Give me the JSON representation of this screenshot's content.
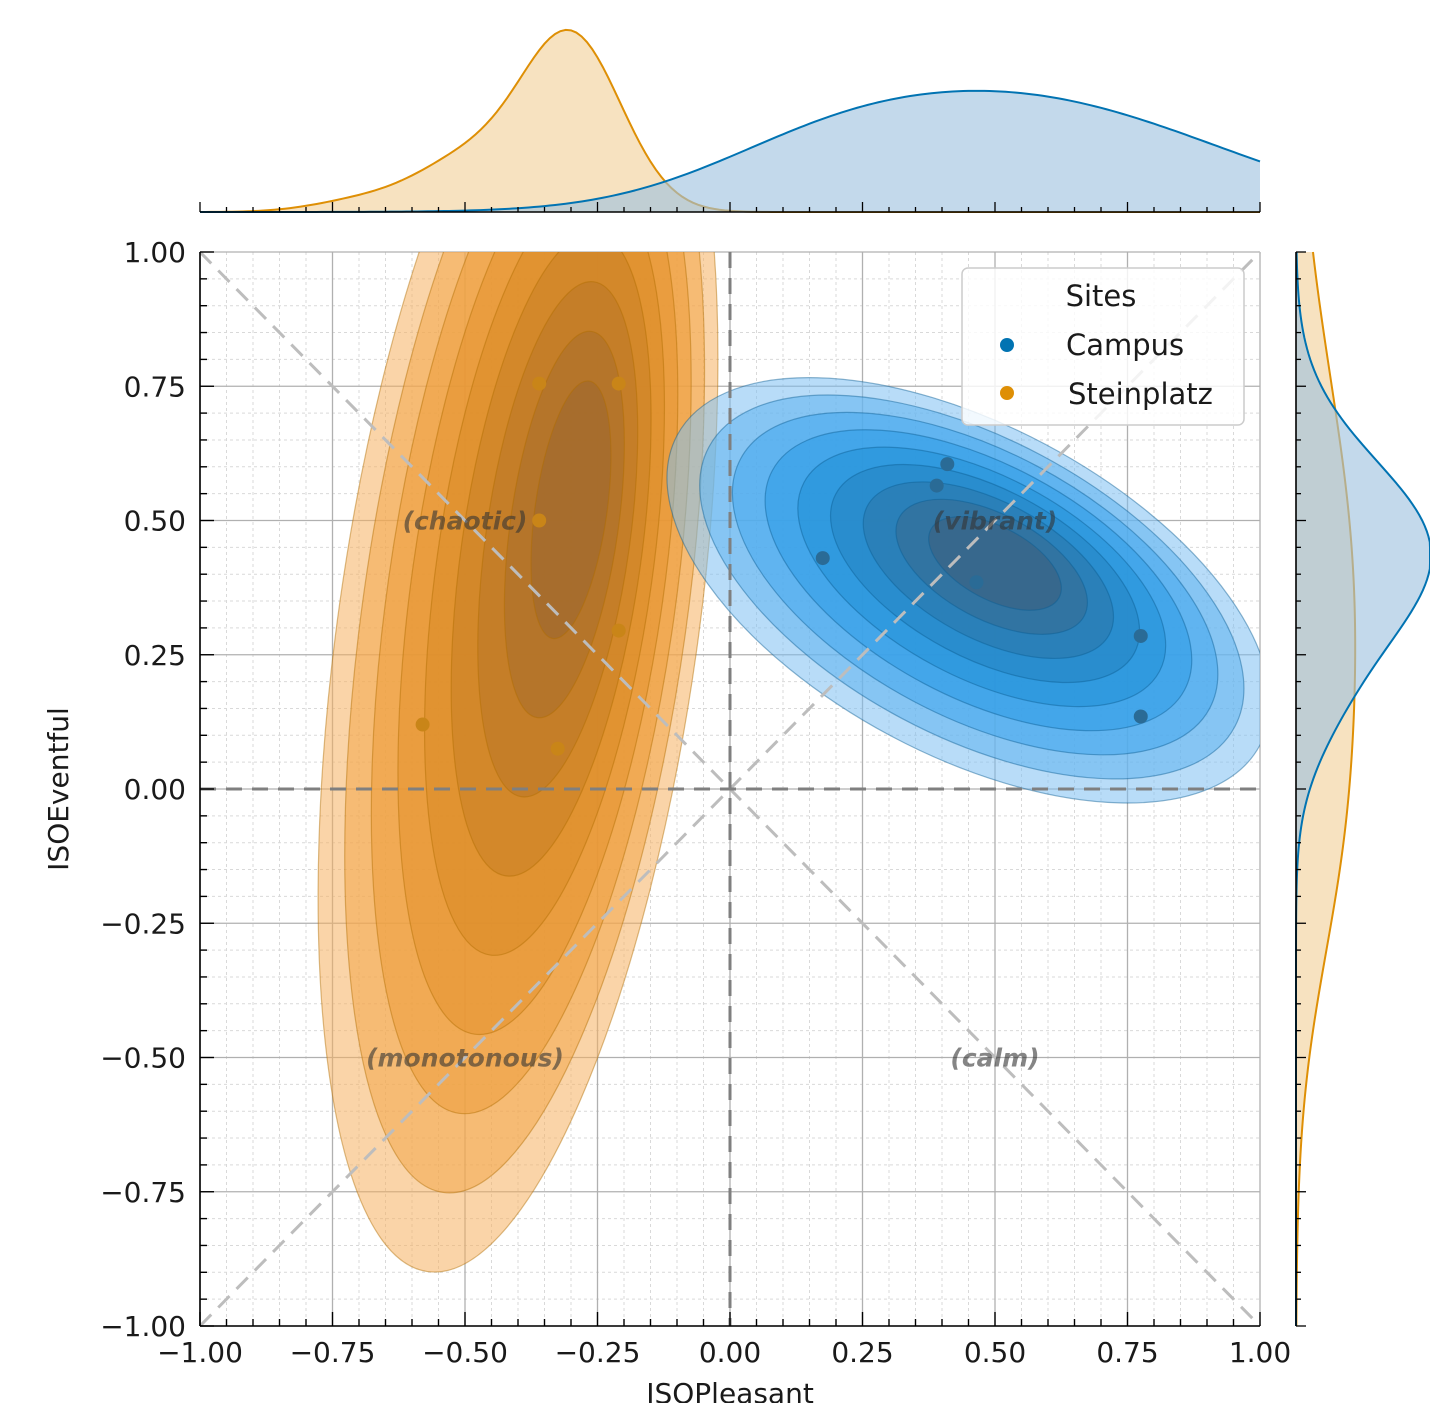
{
  "chart_data": {
    "type": "scatter",
    "title": "",
    "xlabel": "ISOPleasant",
    "ylabel": "ISOEventful",
    "xlim": [
      -1.0,
      1.0
    ],
    "ylim": [
      -1.0,
      1.0
    ],
    "x_ticks": [
      "−1.00",
      "−0.75",
      "−0.50",
      "−0.25",
      "0.00",
      "0.25",
      "0.50",
      "0.75",
      "1.00"
    ],
    "y_ticks": [
      "1.00",
      "0.75",
      "0.50",
      "0.25",
      "0.00",
      "−0.25",
      "−0.50",
      "−0.75",
      "−1.00"
    ],
    "grid": true,
    "legend": {
      "title": "Sites",
      "position": "top-right"
    },
    "quadrant_labels": {
      "chaotic": "(chaotic)",
      "vibrant": "(vibrant)",
      "monotonous": "(monotonous)",
      "calm": "(calm)"
    },
    "marginals": [
      "kde-top",
      "kde-right"
    ],
    "series": [
      {
        "name": "Campus",
        "color": "#0173b2",
        "points": [
          [
            0.41,
            0.605
          ],
          [
            0.39,
            0.565
          ],
          [
            0.175,
            0.43
          ],
          [
            0.465,
            0.385
          ],
          [
            0.775,
            0.285
          ],
          [
            0.775,
            0.135
          ]
        ]
      },
      {
        "name": "Steinplatz",
        "color": "#de8f05",
        "points": [
          [
            -0.36,
            0.755
          ],
          [
            -0.21,
            0.755
          ],
          [
            -0.36,
            0.5
          ],
          [
            -0.21,
            0.295
          ],
          [
            -0.58,
            0.12
          ],
          [
            -0.325,
            0.075
          ]
        ]
      }
    ]
  }
}
